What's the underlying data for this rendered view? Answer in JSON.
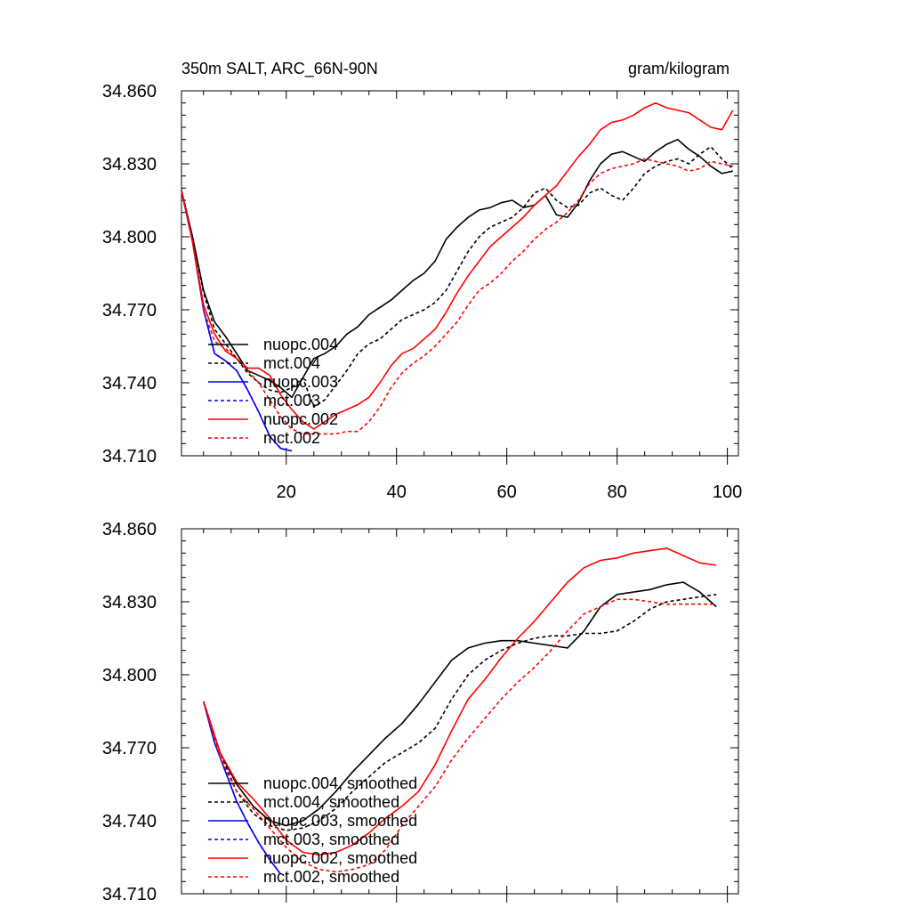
{
  "figure": {
    "title_left": "350m SALT, ARC_66N-90N",
    "title_right": "gram/kilogram"
  },
  "chart_data": [
    {
      "type": "line",
      "panel": "raw",
      "title": "350m SALT, ARC_66N-90N",
      "units": "gram/kilogram",
      "xlim": [
        1,
        102
      ],
      "ylim": [
        34.71,
        34.86
      ],
      "xticks": [
        20,
        40,
        60,
        80,
        100
      ],
      "xtick_labels": [
        "20",
        "40",
        "60",
        "80",
        "100"
      ],
      "yticks": [
        34.71,
        34.74,
        34.77,
        34.8,
        34.83,
        34.86
      ],
      "ytick_labels": [
        "34.710",
        "34.740",
        "34.770",
        "34.800",
        "34.830",
        "34.860"
      ],
      "legend_position": "lower-left",
      "series": [
        {
          "name": "nuopc.004",
          "color": "#000000",
          "dash": "solid",
          "x": [
            1,
            3,
            5,
            7,
            9,
            11,
            13,
            15,
            17,
            19,
            21,
            23,
            25,
            27,
            29,
            31,
            33,
            35,
            37,
            39,
            41,
            43,
            45,
            47,
            49,
            51,
            53,
            55,
            57,
            59,
            61,
            63,
            65,
            67,
            69,
            71,
            73,
            75,
            77,
            79,
            81,
            83,
            85,
            87,
            89,
            91,
            93,
            95,
            97,
            99,
            101
          ],
          "y": [
            34.819,
            34.8,
            34.778,
            34.765,
            34.759,
            34.752,
            34.745,
            34.743,
            34.741,
            34.738,
            34.734,
            34.742,
            34.75,
            34.752,
            34.755,
            34.76,
            34.763,
            34.768,
            34.771,
            34.774,
            34.778,
            34.782,
            34.785,
            34.79,
            34.799,
            34.804,
            34.808,
            34.811,
            34.812,
            34.814,
            34.815,
            34.812,
            34.813,
            34.817,
            34.809,
            34.808,
            34.814,
            34.823,
            34.83,
            34.834,
            34.835,
            34.833,
            34.831,
            34.835,
            34.838,
            34.84,
            34.836,
            34.833,
            34.829,
            34.826,
            34.827
          ]
        },
        {
          "name": "mct.004",
          "color": "#000000",
          "dash": "dashed",
          "x": [
            1,
            3,
            5,
            7,
            9,
            11,
            13,
            15,
            17,
            19,
            21,
            23,
            25,
            27,
            29,
            31,
            33,
            35,
            37,
            39,
            41,
            43,
            45,
            47,
            49,
            51,
            53,
            55,
            57,
            59,
            61,
            63,
            65,
            67,
            69,
            71,
            73,
            75,
            77,
            79,
            81,
            83,
            85,
            87,
            89,
            91,
            93,
            95,
            97,
            99,
            101
          ],
          "y": [
            34.819,
            34.8,
            34.777,
            34.762,
            34.756,
            34.75,
            34.744,
            34.74,
            34.737,
            34.736,
            34.738,
            34.742,
            34.73,
            34.733,
            34.739,
            34.745,
            34.752,
            34.756,
            34.758,
            34.762,
            34.766,
            34.768,
            34.77,
            34.773,
            34.778,
            34.786,
            34.794,
            34.8,
            34.804,
            34.806,
            34.808,
            34.812,
            34.818,
            34.82,
            34.815,
            34.812,
            34.813,
            34.818,
            34.82,
            34.817,
            34.815,
            34.82,
            34.826,
            34.829,
            34.831,
            34.832,
            34.83,
            34.834,
            34.837,
            34.832,
            34.828
          ]
        },
        {
          "name": "nuopc.003",
          "color": "#0000ff",
          "dash": "solid",
          "x": [
            1,
            3,
            5,
            7,
            9,
            11,
            13,
            15,
            17,
            19,
            21
          ],
          "y": [
            34.819,
            34.798,
            34.77,
            34.752,
            34.749,
            34.745,
            34.737,
            34.728,
            34.718,
            34.713,
            34.712
          ]
        },
        {
          "name": "mct.003",
          "color": "#0000ff",
          "dash": "dashed",
          "x": [
            1,
            3,
            5,
            7,
            9,
            11,
            13,
            15,
            17,
            19,
            21
          ],
          "y": [
            34.819,
            34.798,
            34.77,
            34.752,
            34.749,
            34.745,
            34.737,
            34.728,
            34.718,
            34.713,
            34.712
          ]
        },
        {
          "name": "nuopc.002",
          "color": "#ff0000",
          "dash": "solid",
          "x": [
            1,
            3,
            5,
            7,
            9,
            11,
            13,
            15,
            17,
            19,
            21,
            23,
            25,
            27,
            29,
            31,
            33,
            35,
            37,
            39,
            41,
            43,
            45,
            47,
            49,
            51,
            53,
            55,
            57,
            59,
            61,
            63,
            65,
            67,
            69,
            71,
            73,
            75,
            77,
            79,
            81,
            83,
            85,
            87,
            89,
            91,
            93,
            95,
            97,
            99,
            101
          ],
          "y": [
            34.819,
            34.798,
            34.772,
            34.76,
            34.753,
            34.75,
            34.746,
            34.746,
            34.743,
            34.735,
            34.729,
            34.724,
            34.721,
            34.724,
            34.727,
            34.729,
            34.731,
            34.734,
            34.74,
            34.747,
            34.752,
            34.754,
            34.758,
            34.762,
            34.769,
            34.777,
            34.784,
            34.79,
            34.796,
            34.8,
            34.804,
            34.808,
            34.813,
            34.817,
            34.821,
            34.827,
            34.833,
            34.838,
            34.844,
            34.847,
            34.848,
            34.85,
            34.853,
            34.855,
            34.853,
            34.852,
            34.851,
            34.848,
            34.845,
            34.844,
            34.852
          ]
        },
        {
          "name": "mct.002",
          "color": "#ff0000",
          "dash": "dashed",
          "x": [
            1,
            3,
            5,
            7,
            9,
            11,
            13,
            15,
            17,
            19,
            21,
            23,
            25,
            27,
            29,
            31,
            33,
            35,
            37,
            39,
            41,
            43,
            45,
            47,
            49,
            51,
            53,
            55,
            57,
            59,
            61,
            63,
            65,
            67,
            69,
            71,
            73,
            75,
            77,
            79,
            81,
            83,
            85,
            87,
            89,
            91,
            93,
            95,
            97,
            99,
            101
          ],
          "y": [
            34.819,
            34.798,
            34.77,
            34.757,
            34.754,
            34.75,
            34.745,
            34.74,
            34.733,
            34.726,
            34.721,
            34.719,
            34.719,
            34.719,
            34.719,
            34.72,
            34.72,
            34.724,
            34.73,
            34.738,
            34.744,
            34.748,
            34.751,
            34.755,
            34.76,
            34.765,
            34.772,
            34.778,
            34.781,
            34.785,
            34.79,
            34.794,
            34.799,
            34.803,
            34.806,
            34.81,
            34.815,
            34.822,
            34.826,
            34.828,
            34.829,
            34.83,
            34.832,
            34.831,
            34.83,
            34.829,
            34.827,
            34.828,
            34.831,
            34.83,
            34.829
          ]
        }
      ]
    },
    {
      "type": "line",
      "panel": "smoothed",
      "xlim": [
        1,
        102
      ],
      "ylim": [
        34.71,
        34.86
      ],
      "yticks": [
        34.71,
        34.74,
        34.77,
        34.8,
        34.83,
        34.86
      ],
      "ytick_labels": [
        "34.710",
        "34.740",
        "34.770",
        "34.800",
        "34.830",
        "34.860"
      ],
      "xticks": [
        20,
        40,
        60,
        80,
        100
      ],
      "legend_position": "lower-left",
      "series": [
        {
          "name": "nuopc.004, smoothed",
          "color": "#000000",
          "dash": "solid",
          "x": [
            5,
            8,
            11,
            14,
            17,
            20,
            23,
            26,
            29,
            32,
            35,
            38,
            41,
            44,
            47,
            50,
            53,
            56,
            59,
            62,
            65,
            68,
            71,
            74,
            77,
            80,
            83,
            86,
            89,
            92,
            95,
            98
          ],
          "y": [
            34.789,
            34.768,
            34.755,
            34.746,
            34.74,
            34.738,
            34.74,
            34.745,
            34.752,
            34.76,
            34.767,
            34.774,
            34.78,
            34.788,
            34.797,
            34.806,
            34.811,
            34.813,
            34.814,
            34.814,
            34.813,
            34.812,
            34.811,
            34.818,
            34.828,
            34.833,
            34.834,
            34.835,
            34.837,
            34.838,
            34.834,
            34.828
          ]
        },
        {
          "name": "mct.004, smoothed",
          "color": "#000000",
          "dash": "dashed",
          "x": [
            5,
            8,
            11,
            14,
            17,
            20,
            23,
            26,
            29,
            32,
            35,
            38,
            41,
            44,
            47,
            50,
            53,
            56,
            59,
            62,
            65,
            68,
            71,
            74,
            77,
            80,
            83,
            86,
            89,
            92,
            95,
            98
          ],
          "y": [
            34.789,
            34.768,
            34.752,
            34.743,
            34.738,
            34.736,
            34.737,
            34.74,
            34.745,
            34.752,
            34.758,
            34.764,
            34.768,
            34.772,
            34.778,
            34.79,
            34.8,
            34.806,
            34.81,
            34.813,
            34.815,
            34.816,
            34.816,
            34.817,
            34.817,
            34.818,
            34.822,
            34.827,
            34.83,
            34.831,
            34.832,
            34.833
          ]
        },
        {
          "name": "nuopc.003, smoothed",
          "color": "#0000ff",
          "dash": "solid",
          "x": [
            5,
            7,
            9,
            11,
            13,
            15,
            17,
            19
          ],
          "y": [
            34.789,
            34.772,
            34.76,
            34.748,
            34.739,
            34.731,
            34.724,
            34.718
          ]
        },
        {
          "name": "mct.003, smoothed",
          "color": "#0000ff",
          "dash": "dashed",
          "x": [
            5,
            7,
            9,
            11,
            13,
            15,
            17,
            19
          ],
          "y": [
            34.789,
            34.772,
            34.76,
            34.748,
            34.739,
            34.731,
            34.724,
            34.718
          ]
        },
        {
          "name": "nuopc.002, smoothed",
          "color": "#ff0000",
          "dash": "solid",
          "x": [
            5,
            8,
            11,
            14,
            17,
            20,
            23,
            26,
            29,
            32,
            35,
            38,
            41,
            44,
            47,
            50,
            53,
            56,
            59,
            62,
            65,
            68,
            71,
            74,
            77,
            80,
            83,
            86,
            89,
            92,
            95,
            98
          ],
          "y": [
            34.789,
            34.768,
            34.756,
            34.749,
            34.741,
            34.732,
            34.727,
            34.726,
            34.727,
            34.73,
            34.735,
            34.741,
            34.746,
            34.752,
            34.763,
            34.777,
            34.79,
            34.798,
            34.807,
            34.815,
            34.822,
            34.83,
            34.838,
            34.844,
            34.847,
            34.848,
            34.85,
            34.851,
            34.852,
            34.849,
            34.846,
            34.845
          ]
        },
        {
          "name": "mct.002, smoothed",
          "color": "#ff0000",
          "dash": "dashed",
          "x": [
            5,
            8,
            11,
            14,
            17,
            20,
            23,
            26,
            29,
            32,
            35,
            38,
            41,
            44,
            47,
            50,
            53,
            56,
            59,
            62,
            65,
            68,
            71,
            74,
            77,
            80,
            83,
            86,
            89,
            92,
            95,
            98
          ],
          "y": [
            34.789,
            34.766,
            34.752,
            34.745,
            34.737,
            34.729,
            34.723,
            34.72,
            34.719,
            34.72,
            34.722,
            34.728,
            34.738,
            34.746,
            34.754,
            34.765,
            34.774,
            34.782,
            34.79,
            34.797,
            34.803,
            34.81,
            34.818,
            34.825,
            34.828,
            34.831,
            34.831,
            34.83,
            34.829,
            34.829,
            34.829,
            34.829
          ]
        }
      ]
    }
  ]
}
